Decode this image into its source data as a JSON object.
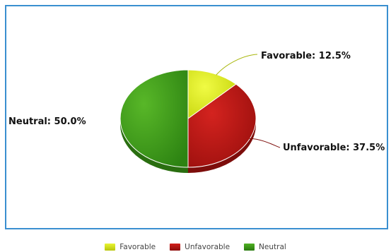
{
  "chart_data": {
    "type": "pie",
    "categories": [
      "Favorable",
      "Unfavorable",
      "Neutral"
    ],
    "values": [
      12.5,
      37.5,
      50.0
    ],
    "data_labels": [
      "Favorable: 12.5%",
      "Unfavorable: 37.5%",
      "Neutral: 50.0%"
    ],
    "colors": [
      "#d9ea12",
      "#b61512",
      "#3e9c19"
    ],
    "dark_colors": [
      "#a9b70d",
      "#7d0d0b",
      "#2a6e10"
    ],
    "style": "3d",
    "legend_position": "bottom"
  }
}
